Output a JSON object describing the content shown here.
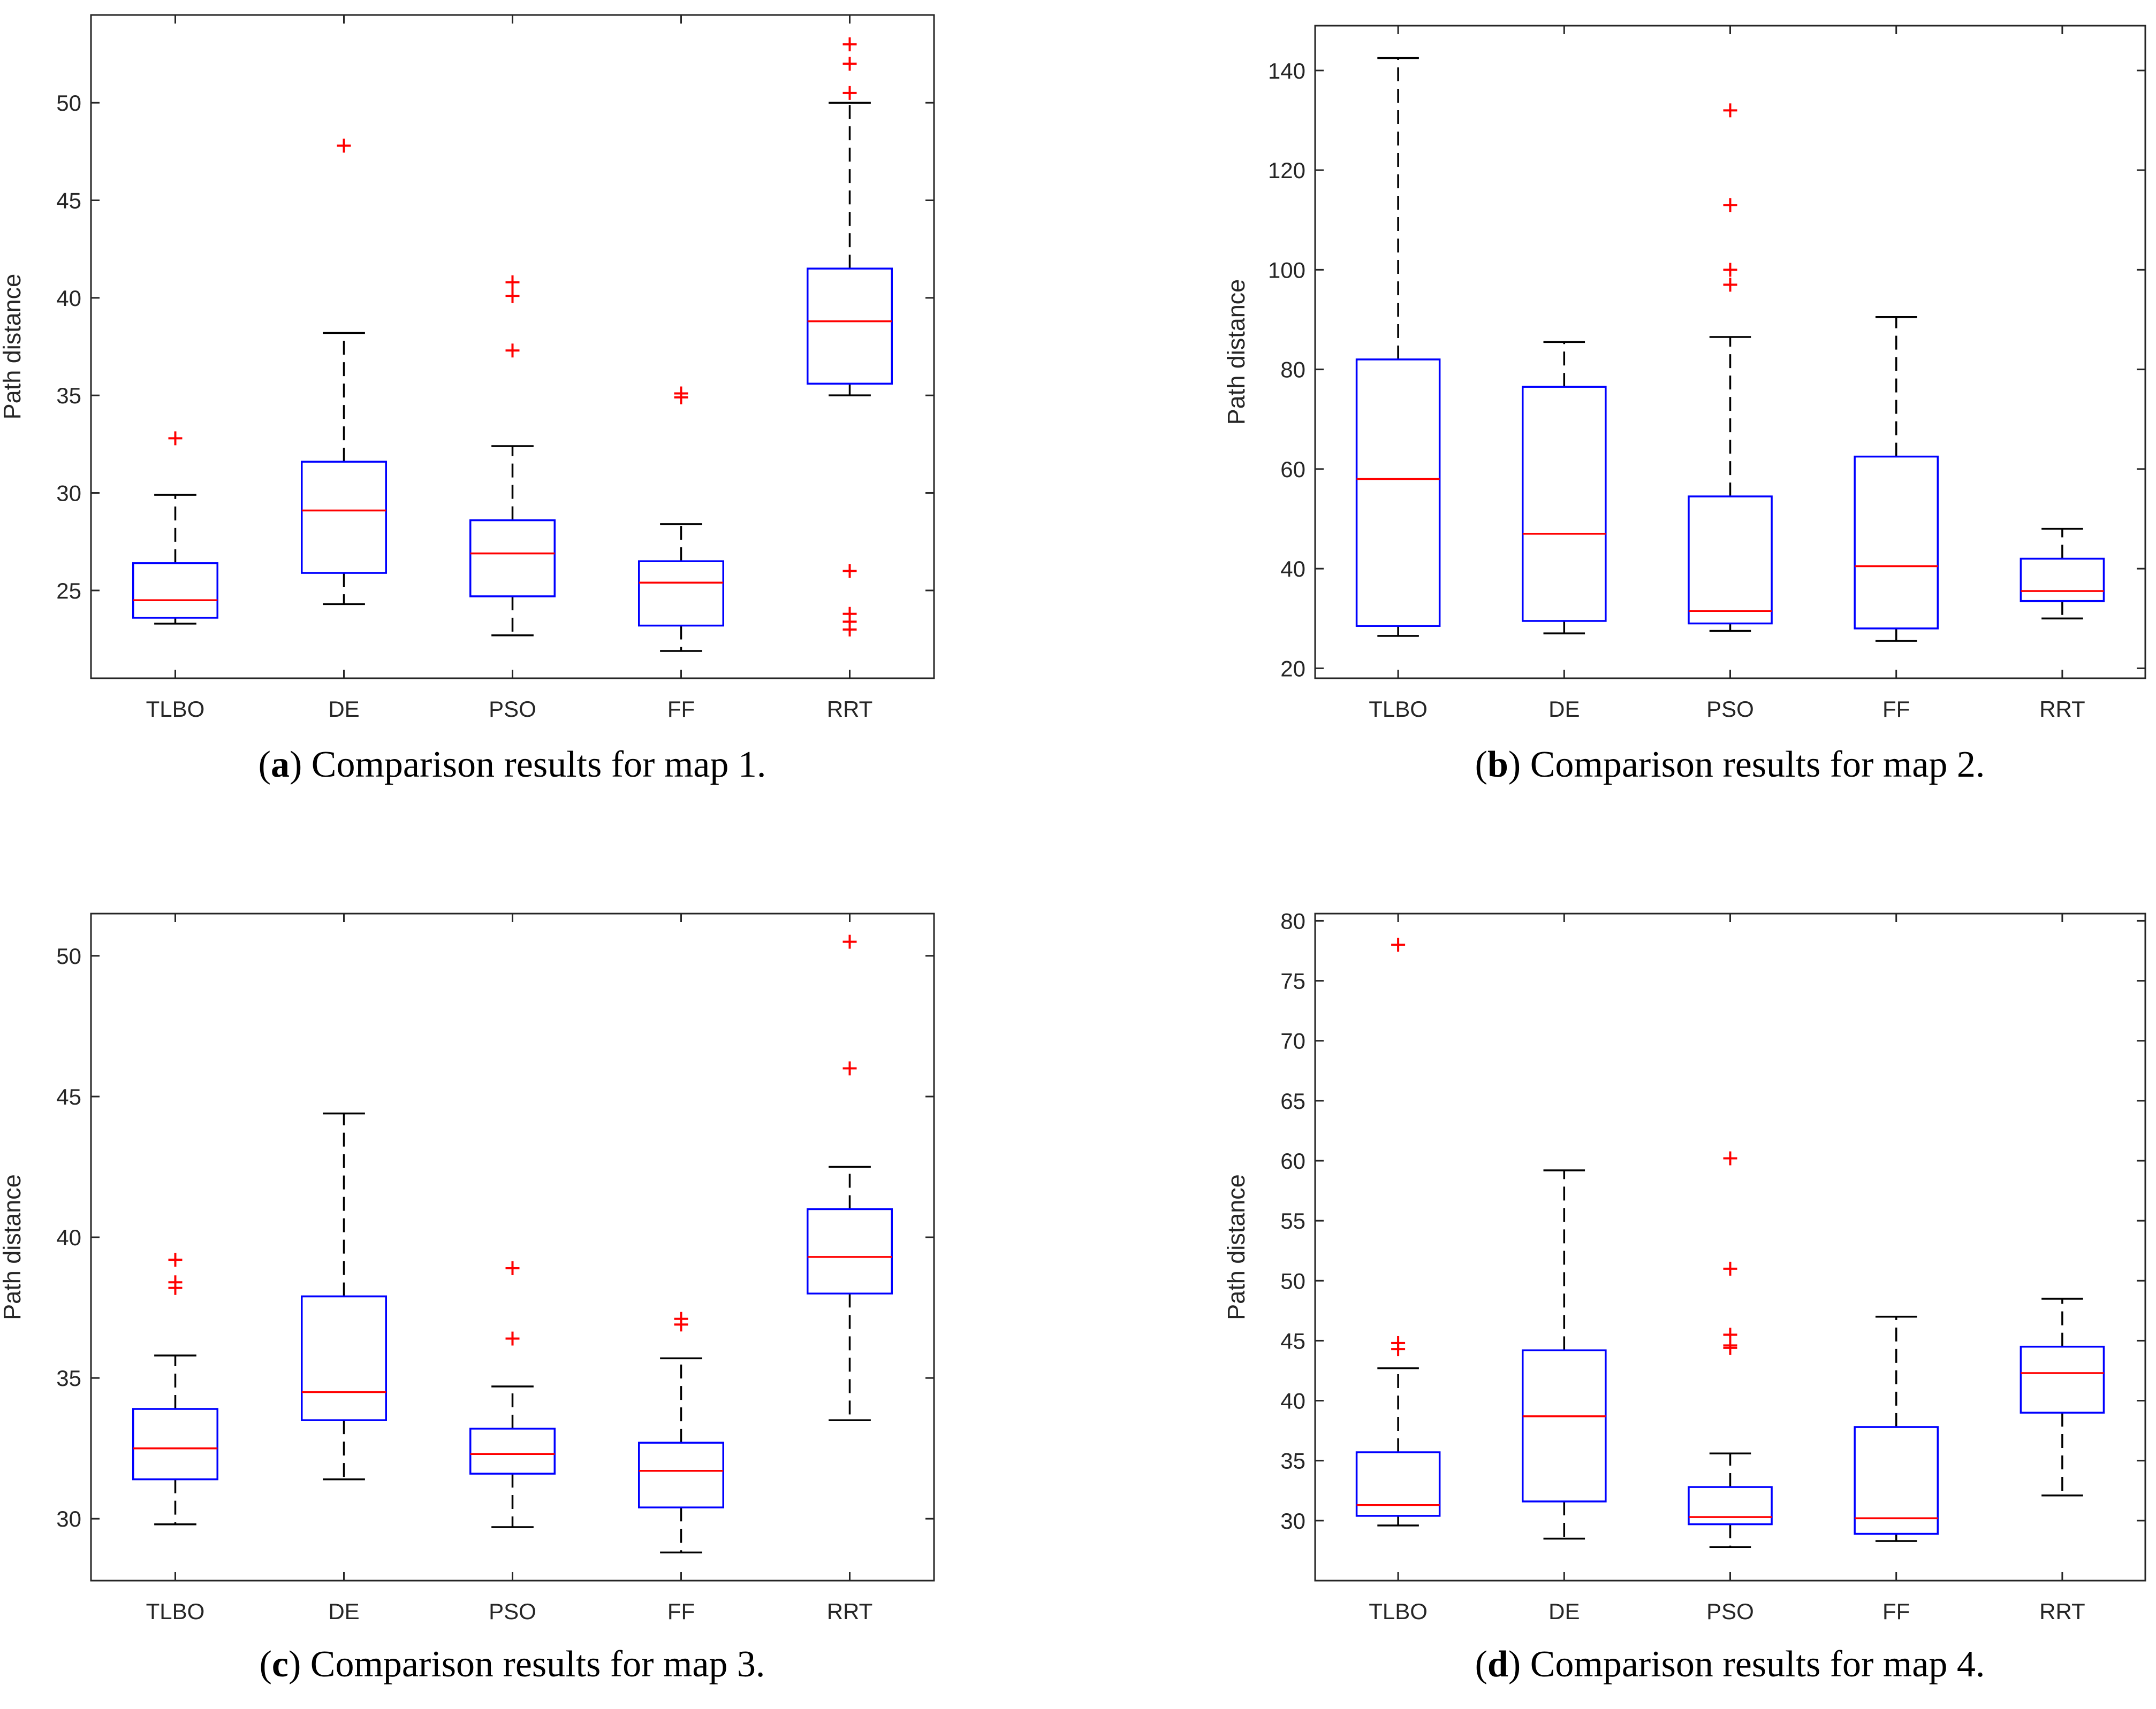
{
  "chart_data": [
    {
      "type": "box",
      "panel": "a",
      "caption_tag": "a",
      "caption_text": "Comparison results for map 1.",
      "ylabel": "Path distance",
      "ylim": [
        20.5,
        54.5
      ],
      "yticks": [
        25,
        30,
        35,
        40,
        45,
        50
      ],
      "categories": [
        "TLBO",
        "DE",
        "PSO",
        "FF",
        "RRT"
      ],
      "boxes": [
        {
          "whislo": 23.3,
          "q1": 23.6,
          "med": 24.5,
          "q3": 26.4,
          "whishi": 29.9,
          "fliers": [
            32.8
          ]
        },
        {
          "whislo": 24.3,
          "q1": 25.9,
          "med": 29.1,
          "q3": 31.6,
          "whishi": 38.2,
          "fliers": [
            47.8
          ]
        },
        {
          "whislo": 22.7,
          "q1": 24.7,
          "med": 26.9,
          "q3": 28.6,
          "whishi": 32.4,
          "fliers": [
            37.3,
            40.1,
            40.8
          ]
        },
        {
          "whislo": 21.9,
          "q1": 23.2,
          "med": 25.4,
          "q3": 26.5,
          "whishi": 28.4,
          "fliers": [
            34.9,
            35.1
          ]
        },
        {
          "whislo": 35.0,
          "q1": 35.6,
          "med": 38.8,
          "q3": 41.5,
          "whishi": 50.0,
          "fliers": [
            23.0,
            23.4,
            23.8,
            26.0,
            50.5,
            52.0,
            53.0
          ]
        }
      ]
    },
    {
      "type": "box",
      "panel": "b",
      "caption_tag": "b",
      "caption_text": "Comparison results for map 2.",
      "ylabel": "Path distance",
      "ylim": [
        18,
        149
      ],
      "yticks": [
        20,
        40,
        60,
        80,
        100,
        120,
        140
      ],
      "categories": [
        "TLBO",
        "DE",
        "PSO",
        "FF",
        "RRT"
      ],
      "boxes": [
        {
          "whislo": 26.5,
          "q1": 28.5,
          "med": 58.0,
          "q3": 82.0,
          "whishi": 142.5,
          "fliers": []
        },
        {
          "whislo": 27.0,
          "q1": 29.5,
          "med": 47.0,
          "q3": 76.5,
          "whishi": 85.5,
          "fliers": []
        },
        {
          "whislo": 27.5,
          "q1": 29.0,
          "med": 31.5,
          "q3": 54.5,
          "whishi": 86.5,
          "fliers": [
            97.0,
            100.0,
            113.0,
            132.0
          ]
        },
        {
          "whislo": 25.5,
          "q1": 28.0,
          "med": 40.5,
          "q3": 62.5,
          "whishi": 90.5,
          "fliers": []
        },
        {
          "whislo": 30.0,
          "q1": 33.5,
          "med": 35.5,
          "q3": 42.0,
          "whishi": 48.0,
          "fliers": []
        }
      ]
    },
    {
      "type": "box",
      "panel": "c",
      "caption_tag": "c",
      "caption_text": "Comparison results for map 3.",
      "ylabel": "Path distance",
      "ylim": [
        27.8,
        51.5
      ],
      "yticks": [
        30,
        35,
        40,
        45,
        50
      ],
      "categories": [
        "TLBO",
        "DE",
        "PSO",
        "FF",
        "RRT"
      ],
      "boxes": [
        {
          "whislo": 29.8,
          "q1": 31.4,
          "med": 32.5,
          "q3": 33.9,
          "whishi": 35.8,
          "fliers": [
            38.2,
            38.4,
            39.2
          ]
        },
        {
          "whislo": 31.4,
          "q1": 33.5,
          "med": 34.5,
          "q3": 37.9,
          "whishi": 44.4,
          "fliers": []
        },
        {
          "whislo": 29.7,
          "q1": 31.6,
          "med": 32.3,
          "q3": 33.2,
          "whishi": 34.7,
          "fliers": [
            36.4,
            38.9
          ]
        },
        {
          "whislo": 28.8,
          "q1": 30.4,
          "med": 31.7,
          "q3": 32.7,
          "whishi": 35.7,
          "fliers": [
            36.9,
            37.1
          ]
        },
        {
          "whislo": 33.5,
          "q1": 38.0,
          "med": 39.3,
          "q3": 41.0,
          "whishi": 42.5,
          "fliers": [
            46.0,
            50.5
          ]
        }
      ]
    },
    {
      "type": "box",
      "panel": "d",
      "caption_tag": "d",
      "caption_text": "Comparison results for map 4.",
      "ylabel": "Path distance",
      "ylim": [
        25.0,
        80.6
      ],
      "yticks": [
        30,
        35,
        40,
        45,
        50,
        55,
        60,
        65,
        70,
        75,
        80
      ],
      "categories": [
        "TLBO",
        "DE",
        "PSO",
        "FF",
        "RRT"
      ],
      "boxes": [
        {
          "whislo": 29.6,
          "q1": 30.4,
          "med": 31.3,
          "q3": 35.7,
          "whishi": 42.7,
          "fliers": [
            44.3,
            44.8,
            78.0
          ]
        },
        {
          "whislo": 28.5,
          "q1": 31.6,
          "med": 38.7,
          "q3": 44.2,
          "whishi": 59.2,
          "fliers": []
        },
        {
          "whislo": 27.8,
          "q1": 29.7,
          "med": 30.3,
          "q3": 32.8,
          "whishi": 35.6,
          "fliers": [
            44.4,
            44.6,
            45.5,
            51.0,
            60.2
          ]
        },
        {
          "whislo": 28.3,
          "q1": 28.9,
          "med": 30.2,
          "q3": 37.8,
          "whishi": 47.0,
          "fliers": []
        },
        {
          "whislo": 32.1,
          "q1": 39.0,
          "med": 42.3,
          "q3": 44.5,
          "whishi": 48.5,
          "fliers": []
        }
      ]
    }
  ],
  "colors": {
    "box": "#0000ff",
    "median": "#ff0000",
    "whisker": "#000000",
    "outlier": "#ff0000",
    "axis": "#262626"
  }
}
